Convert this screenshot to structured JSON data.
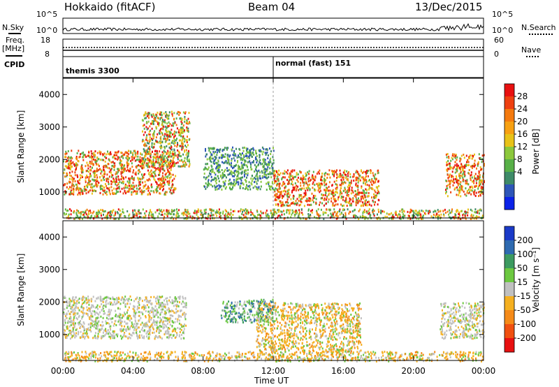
{
  "header": {
    "radar": "Hokkaido (fitACF)",
    "beam": "Beam 04",
    "date": "13/Dec/2015"
  },
  "top_panels": {
    "nsky_label": "N.Sky",
    "nsky_ticks": [
      "10^5",
      "10^0"
    ],
    "nsearch_label": "N.Search",
    "nsearch_ticks": [
      "10^5",
      "10^0"
    ],
    "freq_label_1": "Freq.",
    "freq_label_2": "[MHz]",
    "freq_ticks": [
      "18",
      "8"
    ],
    "nave_label": "Nave",
    "nave_ticks": [
      "60",
      "0"
    ],
    "cpid_label": "CPID",
    "cpid_segments": [
      {
        "label": "themis 3300",
        "start_hour": 0
      },
      {
        "label": "normal (fast) 151",
        "start_hour": 12
      }
    ]
  },
  "chart_data": [
    {
      "type": "heatmap",
      "title": "",
      "ylabel": "Slant Range [km]",
      "xlabel": "",
      "xlim_hours": [
        0,
        24
      ],
      "ylim": [
        200,
        4500
      ],
      "x_ticks": [
        "00:00",
        "04:00",
        "08:00",
        "12:00",
        "16:00",
        "20:00",
        "00:00"
      ],
      "y_ticks": [
        1000,
        2000,
        3000,
        4000
      ],
      "colorbar": {
        "label": "Power [dB]",
        "ticks": [
          "4",
          "8",
          "12",
          "16",
          "20",
          "24",
          "28"
        ],
        "colors": [
          "#0b22e8",
          "#2e56b8",
          "#3e8a68",
          "#58b048",
          "#8cc83c",
          "#e8c218",
          "#f7a012",
          "#f47a0e",
          "#ee4010",
          "#e81010"
        ]
      },
      "echo_regions": [
        {
          "hours": [
            0.0,
            6.4
          ],
          "range_km": [
            950,
            2300
          ],
          "level": "strong"
        },
        {
          "hours": [
            4.5,
            7.2
          ],
          "range_km": [
            1800,
            3500
          ],
          "level": "moderate"
        },
        {
          "hours": [
            8.0,
            12.0
          ],
          "range_km": [
            1100,
            2400
          ],
          "level": "weak"
        },
        {
          "hours": [
            12.0,
            18.0
          ],
          "range_km": [
            600,
            1700
          ],
          "level": "strong"
        },
        {
          "hours": [
            21.8,
            24.0
          ],
          "range_km": [
            900,
            2200
          ],
          "level": "strong"
        },
        {
          "hours": [
            0.0,
            24.0
          ],
          "range_km": [
            200,
            500
          ],
          "level": "moderate"
        }
      ]
    },
    {
      "type": "heatmap",
      "title": "",
      "ylabel": "Slant Range [km]",
      "xlabel": "Time UT",
      "xlim_hours": [
        0,
        24
      ],
      "ylim": [
        200,
        4500
      ],
      "x_ticks": [
        "00:00",
        "04:00",
        "08:00",
        "12:00",
        "16:00",
        "20:00",
        "00:00"
      ],
      "y_ticks": [
        1000,
        2000,
        3000,
        4000
      ],
      "colorbar": {
        "label": "Velocity [m s⁻¹]",
        "ticks": [
          "200",
          "100",
          "50",
          "15",
          "-15",
          "-50",
          "-100",
          "-200"
        ],
        "colors": [
          "#1a3ac8",
          "#2e6ab0",
          "#3c9a60",
          "#6cc840",
          "#c0c0c0",
          "#f5b020",
          "#f58a18",
          "#f05010",
          "#e81010"
        ]
      },
      "echo_regions": [
        {
          "hours": [
            0.0,
            7.0
          ],
          "range_km": [
            900,
            2200
          ],
          "level": "near-zero"
        },
        {
          "hours": [
            11.0,
            17.0
          ],
          "range_km": [
            500,
            2000
          ],
          "level": "negative"
        },
        {
          "hours": [
            9.0,
            12.0
          ],
          "range_km": [
            1400,
            2100
          ],
          "level": "positive"
        },
        {
          "hours": [
            21.5,
            24.0
          ],
          "range_km": [
            900,
            2000
          ],
          "level": "near-zero"
        },
        {
          "hours": [
            0.0,
            24.0
          ],
          "range_km": [
            200,
            500
          ],
          "level": "negative"
        }
      ]
    }
  ]
}
